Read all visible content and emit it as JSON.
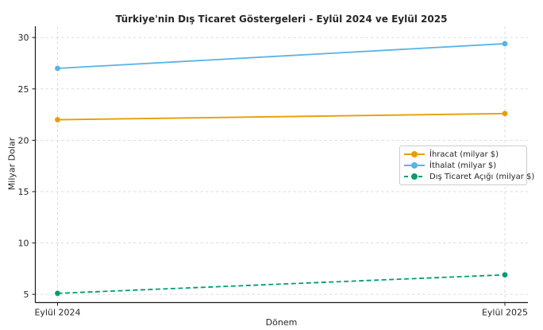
{
  "chart_data": {
    "type": "line",
    "title": "Türkiye'nin Dış Ticaret Göstergeleri - Eylül 2024 ve Eylül 2025",
    "xlabel": "Dönem",
    "ylabel": "Milyar Dolar",
    "categories": [
      "Eylül 2024",
      "Eylül 2025"
    ],
    "series": [
      {
        "name": "İhracat (milyar $)",
        "values": [
          22.0,
          22.6
        ],
        "color": "#E69F00",
        "style": "solid",
        "marker": "circle"
      },
      {
        "name": "İthalat (milyar $)",
        "values": [
          27.0,
          29.4
        ],
        "color": "#56B4E9",
        "style": "solid",
        "marker": "circle"
      },
      {
        "name": "Dış Ticaret Açığı (milyar $)",
        "values": [
          5.1,
          6.9
        ],
        "color": "#009E73",
        "style": "dashed",
        "marker": "circle"
      }
    ],
    "yticks": [
      5,
      10,
      15,
      20,
      25,
      30
    ],
    "ylim": [
      4.2,
      31.1
    ],
    "grid": true,
    "legend_position": "center right",
    "colors": {
      "grid": "#d9d9d9",
      "spine": "#1a1a1a",
      "text": "#262626",
      "background": "#ffffff"
    }
  }
}
